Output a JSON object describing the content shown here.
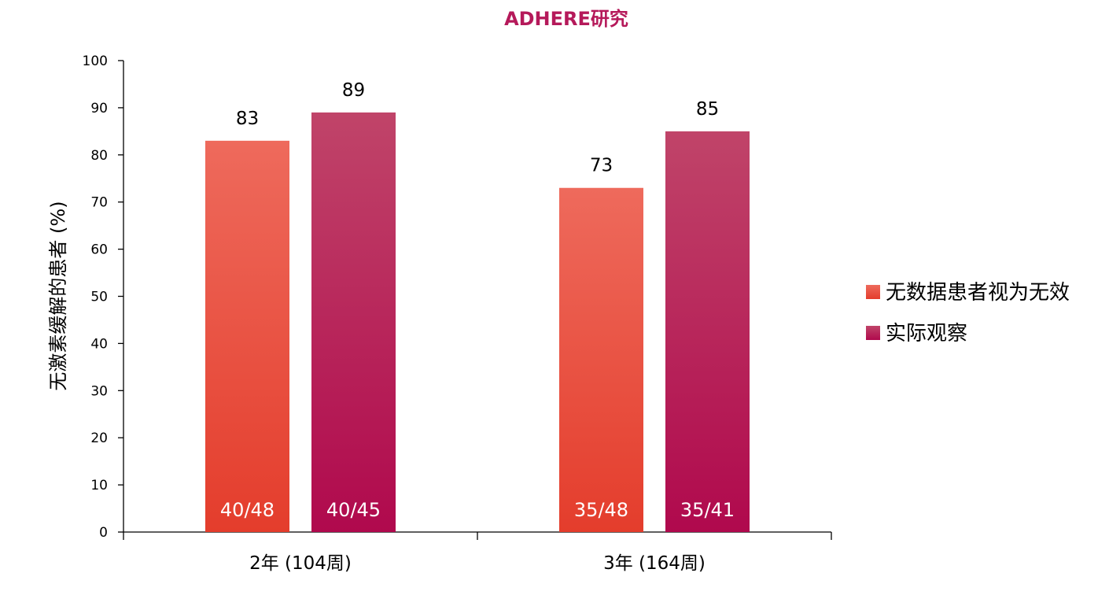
{
  "chart_data": {
    "type": "bar",
    "title": "ADHERE研究",
    "ylabel": "无激素缓解的患者 (%)",
    "xlabel": "",
    "ylim": [
      0,
      100
    ],
    "yticks": [
      0,
      10,
      20,
      30,
      40,
      50,
      60,
      70,
      80,
      90,
      100
    ],
    "categories": [
      "2年 (104周)",
      "3年 (164周)"
    ],
    "series": [
      {
        "name": "无数据患者视为无效",
        "values": [
          83,
          73
        ],
        "bar_labels": [
          "40/48",
          "35/48"
        ],
        "color_top": "#ee6a5c",
        "color_bottom": "#e43d2c"
      },
      {
        "name": "实际观察",
        "values": [
          89,
          85
        ],
        "bar_labels": [
          "40/45",
          "35/41"
        ],
        "color_top": "#c04469",
        "color_bottom": "#b0094d"
      }
    ],
    "legend_position": "right",
    "grid": false
  }
}
